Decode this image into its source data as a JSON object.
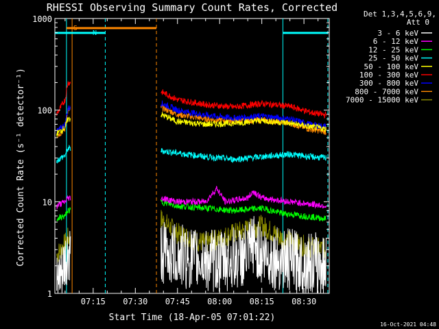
{
  "chart_data": {
    "type": "line",
    "title": "RHESSI Observing Summary Count Rates, Corrected",
    "xlabel": "Start Time (18-Apr-05 07:01:22)",
    "ylabel": "Corrected Count Rate (s⁻¹ detector⁻¹)",
    "yscale": "log",
    "ylim": [
      1,
      1000
    ],
    "xlim_minutes_after_0700": [
      1.37,
      99.0
    ],
    "y_ticks": [
      {
        "value": 1,
        "label": "1"
      },
      {
        "value": 10,
        "label": "10"
      },
      {
        "value": 100,
        "label": "100"
      },
      {
        "value": 1000,
        "label": "1000"
      }
    ],
    "x_ticks": [
      {
        "value": 15,
        "label": "07:15"
      },
      {
        "value": 30,
        "label": "07:30"
      },
      {
        "value": 45,
        "label": "07:45"
      },
      {
        "value": 60,
        "label": "08:00"
      },
      {
        "value": 75,
        "label": "08:15"
      },
      {
        "value": 90,
        "label": "08:30"
      }
    ],
    "legend_header": [
      "Det 1,3,4,5,6,9,",
      "Att 0"
    ],
    "legend_placement": "right",
    "series": [
      {
        "name": "3 - 6 keV",
        "color": "#ffffff",
        "values": [
          [
            2,
            1.2
          ],
          [
            4,
            1.5
          ],
          [
            5,
            2
          ],
          [
            6,
            2.5
          ],
          [
            39,
            2.8
          ],
          [
            50,
            2.4
          ],
          [
            60,
            2.2
          ],
          [
            70,
            2.6
          ],
          [
            72,
            3.5
          ],
          [
            75,
            2.6
          ],
          [
            80,
            2.4
          ],
          [
            98,
            2.0
          ]
        ]
      },
      {
        "name": "6 - 12 keV",
        "color": "#ff00ff",
        "values": [
          [
            2,
            9
          ],
          [
            5,
            10
          ],
          [
            6,
            11
          ],
          [
            39,
            11
          ],
          [
            45,
            10
          ],
          [
            55,
            10
          ],
          [
            59,
            14
          ],
          [
            62,
            10
          ],
          [
            70,
            11
          ],
          [
            72,
            13
          ],
          [
            75,
            11
          ],
          [
            85,
            10
          ],
          [
            98,
            9
          ]
        ]
      },
      {
        "name": "12 - 25 keV",
        "color": "#00ff00",
        "values": [
          [
            2,
            6.5
          ],
          [
            5,
            7
          ],
          [
            6,
            8
          ],
          [
            39,
            10
          ],
          [
            45,
            9
          ],
          [
            55,
            8.5
          ],
          [
            65,
            8
          ],
          [
            75,
            8.5
          ],
          [
            82,
            7.5
          ],
          [
            90,
            7
          ],
          [
            98,
            6.5
          ]
        ]
      },
      {
        "name": "25 - 50 keV",
        "color": "#00ffff",
        "values": [
          [
            2,
            28
          ],
          [
            5,
            32
          ],
          [
            6,
            38
          ],
          [
            39,
            36
          ],
          [
            45,
            34
          ],
          [
            55,
            31
          ],
          [
            65,
            29
          ],
          [
            75,
            31
          ],
          [
            85,
            33
          ],
          [
            92,
            31
          ],
          [
            98,
            30
          ]
        ]
      },
      {
        "name": "50 - 100 keV",
        "color": "#ffff00",
        "values": [
          [
            2,
            55
          ],
          [
            5,
            65
          ],
          [
            6,
            80
          ],
          [
            39,
            90
          ],
          [
            45,
            75
          ],
          [
            55,
            70
          ],
          [
            65,
            72
          ],
          [
            75,
            77
          ],
          [
            85,
            72
          ],
          [
            92,
            66
          ],
          [
            98,
            62
          ]
        ]
      },
      {
        "name": "100 - 300 keV",
        "color": "#ff0000",
        "values": [
          [
            2,
            90
          ],
          [
            5,
            130
          ],
          [
            6,
            200
          ],
          [
            39,
            160
          ],
          [
            45,
            130
          ],
          [
            55,
            115
          ],
          [
            65,
            108
          ],
          [
            75,
            118
          ],
          [
            85,
            110
          ],
          [
            92,
            95
          ],
          [
            98,
            88
          ]
        ]
      },
      {
        "name": "300 - 800 keV",
        "color": "#0000ff",
        "values": [
          [
            2,
            58
          ],
          [
            5,
            70
          ],
          [
            6,
            105
          ],
          [
            39,
            120
          ],
          [
            45,
            100
          ],
          [
            55,
            88
          ],
          [
            65,
            82
          ],
          [
            75,
            86
          ],
          [
            85,
            80
          ],
          [
            92,
            70
          ],
          [
            98,
            66
          ]
        ]
      },
      {
        "name": "800 - 7000 keV",
        "color": "#ff8800",
        "values": [
          [
            2,
            52
          ],
          [
            5,
            62
          ],
          [
            6,
            100
          ],
          [
            39,
            108
          ],
          [
            45,
            90
          ],
          [
            55,
            80
          ],
          [
            65,
            76
          ],
          [
            75,
            78
          ],
          [
            85,
            72
          ],
          [
            92,
            62
          ],
          [
            98,
            58
          ]
        ]
      },
      {
        "name": "7000 - 15000 keV",
        "color": "#888800",
        "values": [
          [
            2,
            2.6
          ],
          [
            5,
            3.5
          ],
          [
            6,
            4
          ],
          [
            39,
            6.5
          ],
          [
            45,
            4.5
          ],
          [
            55,
            3.5
          ],
          [
            65,
            4.5
          ],
          [
            75,
            5.5
          ],
          [
            82,
            4
          ],
          [
            90,
            3.3
          ],
          [
            98,
            3
          ]
        ]
      }
    ],
    "annotations": {
      "flags": [
        {
          "label": "S",
          "color": "#ff8800",
          "start": 5.5,
          "end": 37.5
        },
        {
          "label": "N",
          "color": "#00ffff",
          "start": 1.37,
          "end": 19.3
        },
        {
          "label": "",
          "color": "#00ffff",
          "start": 82.5,
          "end": 98.5
        }
      ],
      "vertical_lines": [
        {
          "x": 7.5,
          "color": "#ff8800",
          "style": "solid"
        },
        {
          "x": 5.5,
          "color": "#00ffff",
          "style": "solid"
        },
        {
          "x": 19.3,
          "color": "#00ffff",
          "style": "dashed"
        },
        {
          "x": 37.5,
          "color": "#ff8800",
          "style": "dashed"
        },
        {
          "x": 82.5,
          "color": "#00ffff",
          "style": "solid"
        },
        {
          "x": 98.5,
          "color": "#00ffff",
          "style": "dashed"
        }
      ],
      "data_gap": [
        7.0,
        39.0
      ],
      "timestamp": "16-Oct-2021 04:48"
    }
  }
}
